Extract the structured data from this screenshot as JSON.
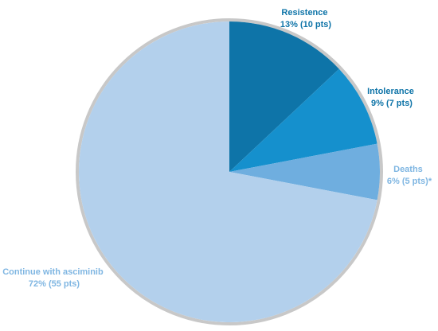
{
  "chart_data": {
    "type": "pie",
    "title": "",
    "slices": [
      {
        "label": "Resistence",
        "detail": "13% (10 pts)",
        "value": 13,
        "count": 10,
        "color": "#0E74A8"
      },
      {
        "label": "Intolerance",
        "detail": "9% (7 pts)",
        "value": 9,
        "count": 7,
        "color": "#1590CD"
      },
      {
        "label": "Deaths",
        "detail": "6% (5 pts)*",
        "value": 6,
        "count": 5,
        "color": "#6FAEDF"
      },
      {
        "label": "Continue with asciminib",
        "detail": "72% (55 pts)",
        "value": 72,
        "count": 55,
        "color": "#B3D0EC"
      }
    ],
    "label_colors": {
      "dark": "#0E74A8",
      "light": "#7FB6E2"
    },
    "outline_color": "#C8C8C8",
    "legend": "none"
  }
}
